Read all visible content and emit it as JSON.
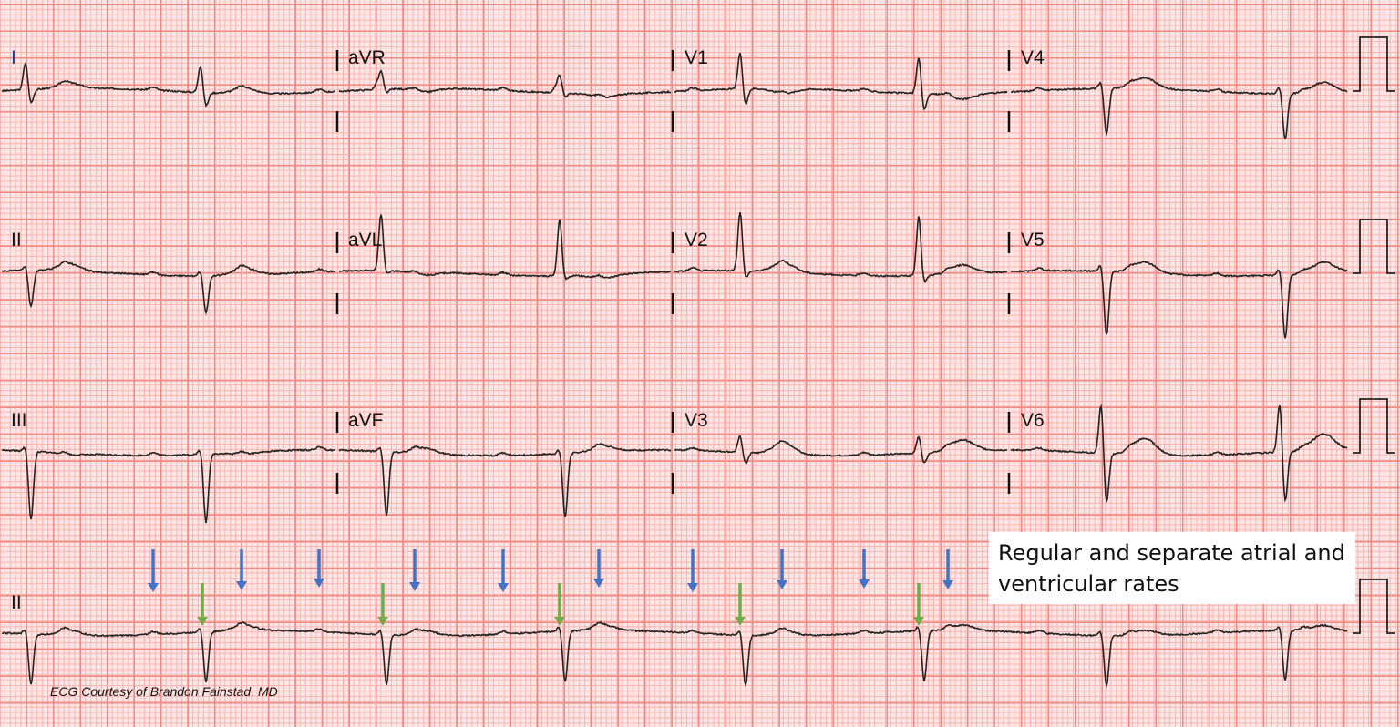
{
  "leads": [
    [
      "I",
      "aVR",
      "V1",
      "V4"
    ],
    [
      "II",
      "aVL",
      "V2",
      "V5"
    ],
    [
      "III",
      "aVF",
      "V3",
      "V6"
    ],
    [
      "II"
    ]
  ],
  "annotation": {
    "text": "Regular and separate atrial and ventricular rates"
  },
  "caption": "ECG Courtesy of Brandon Fainstad, MD",
  "arrows": {
    "p_wave_color": "#4472c4",
    "qrs_color": "#70ad47",
    "p_wave_count": 10,
    "qrs_count": 5
  },
  "colors": {
    "paper": "#fde6e6",
    "major_grid": "#f08a84",
    "minor_grid": "#f6b4b0",
    "trace": "#222222"
  }
}
